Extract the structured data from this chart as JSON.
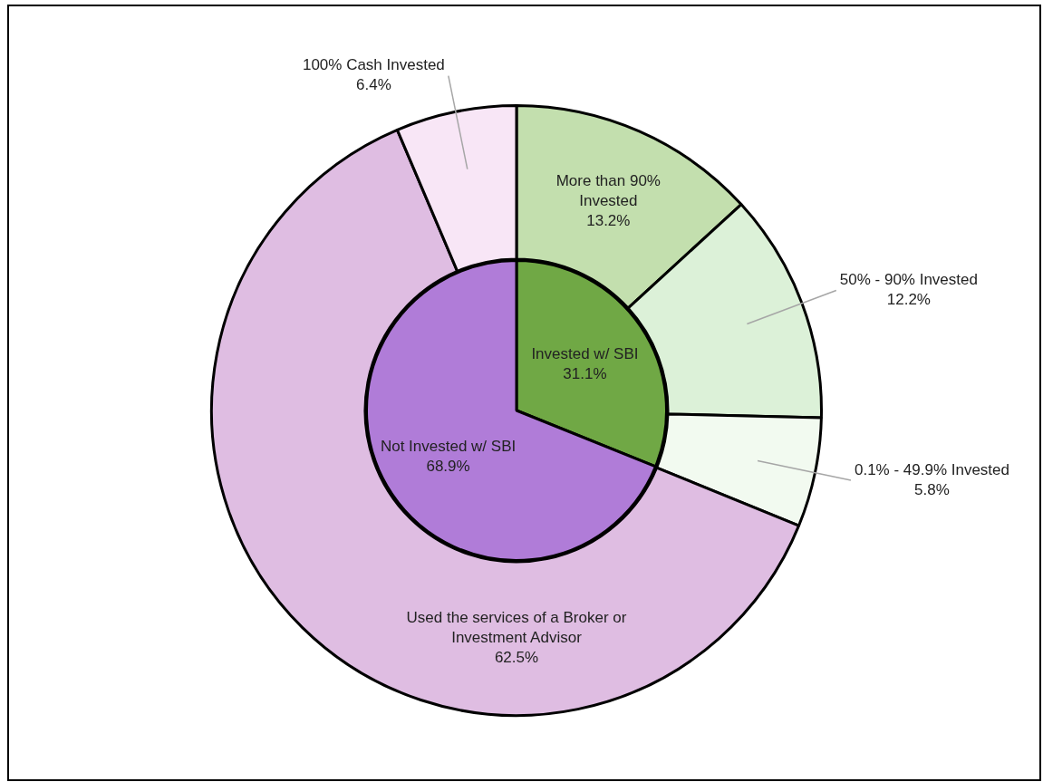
{
  "chart_data": [
    {
      "type": "pie",
      "categories": [
        "Invested w/ SBI",
        "Not Invested w/ SBI"
      ],
      "values": [
        31.1,
        68.9
      ],
      "colors": [
        "#70a845",
        "#b07cd8"
      ],
      "value_labels": [
        "31.1%",
        "68.9%"
      ],
      "legend": false
    },
    {
      "type": "donut",
      "categories": [
        "More than 90% Invested",
        "50% - 90% Invested",
        "0.1% - 49.9% Invested",
        "Used the services of a Broker or Investment Advisor",
        "100% Cash Invested"
      ],
      "values": [
        13.2,
        12.2,
        5.8,
        62.5,
        6.4
      ],
      "colors": [
        "#c3dfae",
        "#dcf1d8",
        "#f2faf0",
        "#dfbde2",
        "#f8e6f6"
      ],
      "value_labels": [
        "13.2%",
        "12.2%",
        "5.8%",
        "62.5%",
        "6.4%"
      ],
      "legend": false
    }
  ]
}
